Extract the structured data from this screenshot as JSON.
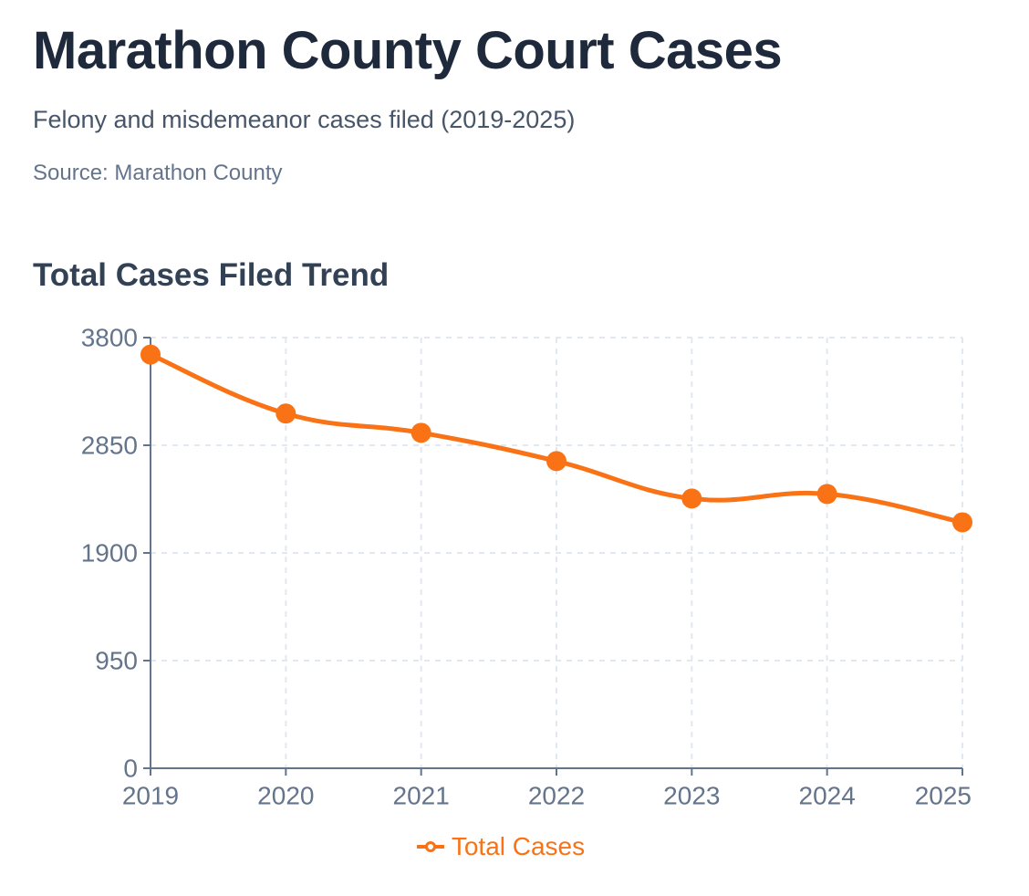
{
  "header": {
    "title": "Marathon County Court Cases",
    "subtitle": "Felony and misdemeanor cases filed (2019-2025)",
    "source": "Source: Marathon County"
  },
  "chart_data": {
    "type": "line",
    "title": "Total Cases Filed Trend",
    "xlabel": "",
    "ylabel": "",
    "categories": [
      "2019",
      "2020",
      "2021",
      "2022",
      "2023",
      "2024",
      "2025"
    ],
    "series": [
      {
        "name": "Total Cases",
        "color": "#f97316",
        "values": [
          3650,
          3130,
          2960,
          2710,
          2380,
          2420,
          2170
        ]
      }
    ],
    "ylim": [
      0,
      3800
    ],
    "yticks": [
      0,
      950,
      1900,
      2850,
      3800
    ],
    "grid": true,
    "legend": "bottom-center"
  }
}
